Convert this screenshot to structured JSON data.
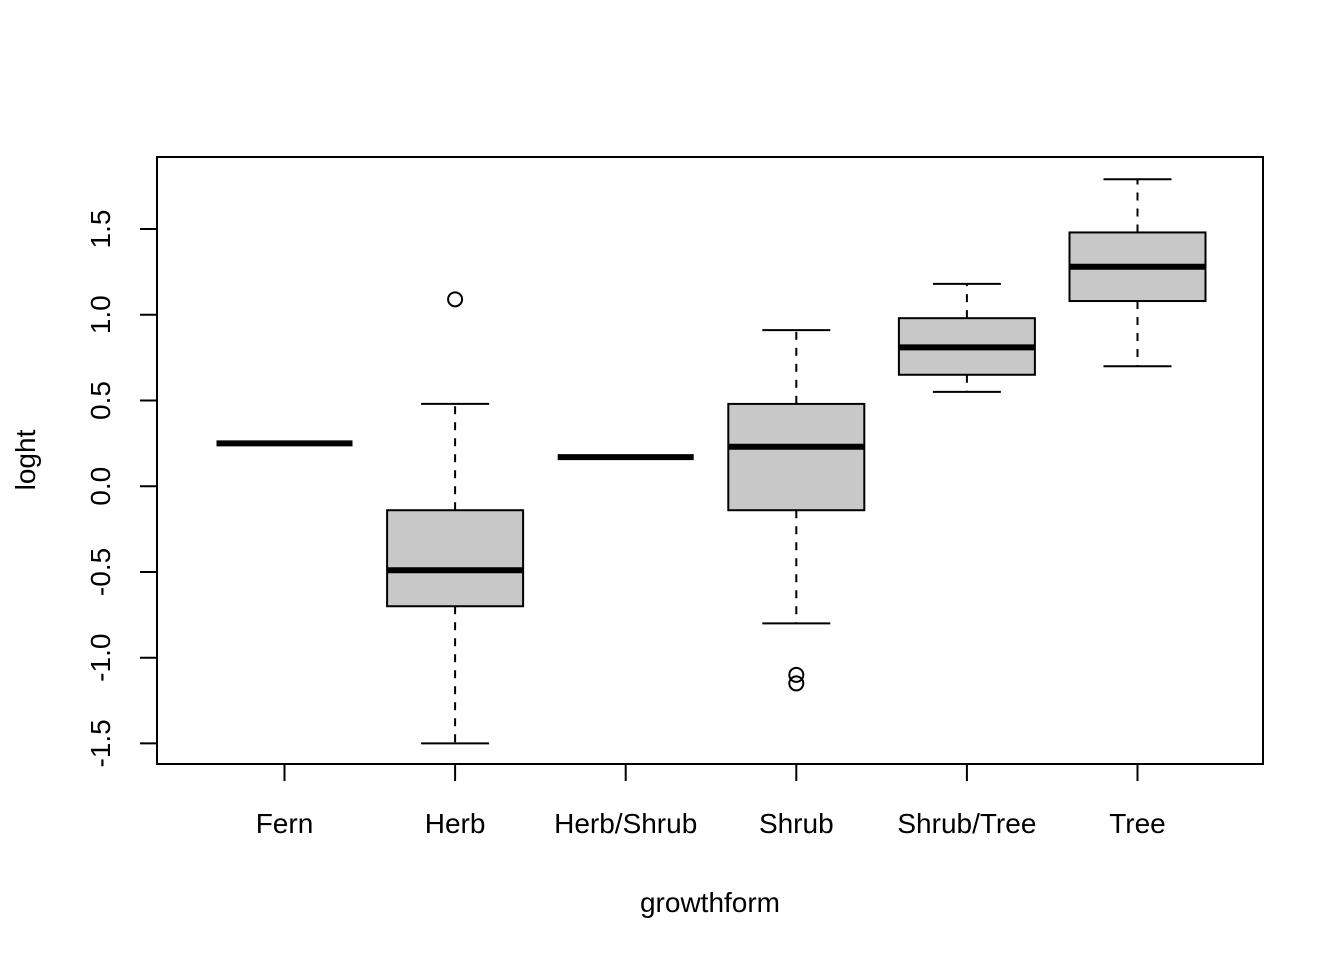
{
  "chart_data": {
    "type": "boxplot",
    "title": "",
    "xlabel": "growthform",
    "ylabel": "loght",
    "ylim": [
      -1.62,
      1.92
    ],
    "yticks": [
      -1.5,
      -1.0,
      -0.5,
      0.0,
      0.5,
      1.0,
      1.5
    ],
    "ytick_labels": [
      "-1.5",
      "-1.0",
      "-0.5",
      "0.0",
      "0.5",
      "1.0",
      "1.5"
    ],
    "grid": false,
    "legend": "none",
    "box_fill": "#c8c8c8",
    "categories": [
      "Fern",
      "Herb",
      "Herb/Shrub",
      "Shrub",
      "Shrub/Tree",
      "Tree"
    ],
    "boxes": [
      {
        "name": "Fern",
        "whisker_low": 0.25,
        "q1": 0.25,
        "median": 0.25,
        "q3": 0.25,
        "whisker_high": 0.25,
        "outliers": []
      },
      {
        "name": "Herb",
        "whisker_low": -1.5,
        "q1": -0.7,
        "median": -0.49,
        "q3": -0.14,
        "whisker_high": 0.48,
        "outliers": [
          1.09
        ]
      },
      {
        "name": "Herb/Shrub",
        "whisker_low": 0.17,
        "q1": 0.17,
        "median": 0.17,
        "q3": 0.17,
        "whisker_high": 0.17,
        "outliers": []
      },
      {
        "name": "Shrub",
        "whisker_low": -0.8,
        "q1": -0.14,
        "median": 0.23,
        "q3": 0.48,
        "whisker_high": 0.91,
        "outliers": [
          -1.1,
          -1.15
        ]
      },
      {
        "name": "Shrub/Tree",
        "whisker_low": 0.55,
        "q1": 0.65,
        "median": 0.81,
        "q3": 0.98,
        "whisker_high": 1.18,
        "outliers": []
      },
      {
        "name": "Tree",
        "whisker_low": 0.7,
        "q1": 1.08,
        "median": 1.28,
        "q3": 1.48,
        "whisker_high": 1.79,
        "outliers": []
      }
    ]
  }
}
